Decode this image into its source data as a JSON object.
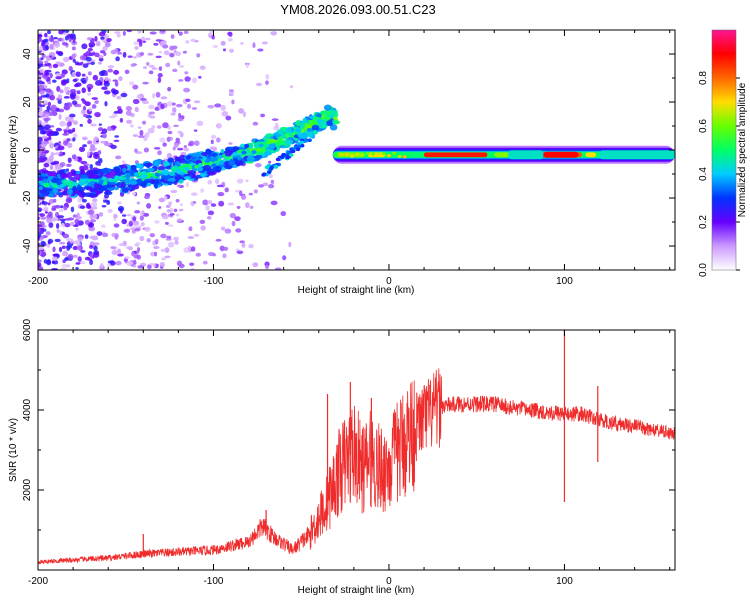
{
  "title": "YM08.2026.093.00.51.C23",
  "colors": {
    "snr_line": "#ef2b2b",
    "background": "#ffffff",
    "axis": "#000000"
  },
  "chart_data": [
    {
      "type": "heatmap",
      "name": "spectrogram",
      "xlabel": "Height of straight line (km)",
      "ylabel": "Frequency (Hz)",
      "xlim": [
        -200,
        163
      ],
      "ylim": [
        -50,
        50
      ],
      "xticks": [
        -200,
        -100,
        0,
        100
      ],
      "xtick_labels": [
        "-200",
        "-100",
        "0",
        "100"
      ],
      "yticks": [
        -40,
        -20,
        0,
        20,
        40
      ],
      "ytick_labels": [
        "-40",
        "-20",
        "0",
        "20",
        "40"
      ],
      "colorbar": {
        "label": "Normalized spectral amplitude",
        "range": [
          0,
          1
        ],
        "ticks": [
          0.0,
          0.2,
          0.4,
          0.6,
          0.8
        ],
        "tick_labels": [
          "0.0",
          "0.2",
          "0.4",
          "0.6",
          "0.8"
        ],
        "colormap": [
          "#ffffff",
          "#cc99ff",
          "#6600ff",
          "#0033ff",
          "#00ccff",
          "#00ff66",
          "#66ff00",
          "#ffdd00",
          "#ff6600",
          "#ff0000",
          "#ff1493"
        ]
      },
      "ridge_track": [
        {
          "height": -200,
          "freq": -14
        },
        {
          "height": -170,
          "freq": -14
        },
        {
          "height": -140,
          "freq": -11
        },
        {
          "height": -110,
          "freq": -7
        },
        {
          "height": -80,
          "freq": -1
        },
        {
          "height": -60,
          "freq": 5
        },
        {
          "height": -45,
          "freq": 10
        },
        {
          "height": -33,
          "freq": 15
        },
        {
          "height": -20,
          "freq": 0
        },
        {
          "height": 0,
          "freq": -2
        },
        {
          "height": 30,
          "freq": -2
        },
        {
          "height": 60,
          "freq": -2
        },
        {
          "height": 100,
          "freq": -2
        },
        {
          "height": 130,
          "freq": -2
        },
        {
          "height": 163,
          "freq": -2
        }
      ]
    },
    {
      "type": "line",
      "name": "snr",
      "xlabel": "Height of straight line (km)",
      "ylabel": "SNR (10 * v/v)",
      "xlim": [
        -200,
        163
      ],
      "ylim": [
        0,
        6000
      ],
      "xticks": [
        -200,
        -100,
        0,
        100
      ],
      "xtick_labels": [
        "-200",
        "-100",
        "0",
        "100"
      ],
      "yticks": [
        2000,
        4000,
        6000
      ],
      "ytick_labels": [
        "2000",
        "4000",
        "6000"
      ],
      "series": [
        {
          "name": "SNR",
          "x": [
            -200,
            -180,
            -160,
            -140,
            -120,
            -100,
            -80,
            -72,
            -65,
            -55,
            -45,
            -35,
            -28,
            -20,
            -15,
            -10,
            -5,
            0,
            10,
            20,
            30,
            40,
            50,
            60,
            70,
            80,
            90,
            100,
            110,
            120,
            130,
            140,
            150,
            163
          ],
          "y": [
            200,
            250,
            300,
            400,
            450,
            500,
            700,
            1100,
            800,
            500,
            900,
            1700,
            2500,
            3000,
            2500,
            2800,
            2500,
            2600,
            3300,
            3800,
            4100,
            4150,
            4150,
            4150,
            4050,
            4000,
            3950,
            3900,
            3900,
            3750,
            3650,
            3600,
            3500,
            3400
          ]
        }
      ],
      "spikes": [
        {
          "x": -140,
          "y": 900
        },
        {
          "x": -70,
          "y": 1500
        },
        {
          "x": -35,
          "y": 4400
        },
        {
          "x": -22,
          "y": 4700
        },
        {
          "x": -10,
          "y": 4300
        },
        {
          "x": 100,
          "y": 6000
        },
        {
          "x": 100,
          "y": 1700
        },
        {
          "x": 119,
          "y": 4600
        },
        {
          "x": 119,
          "y": 2700
        }
      ]
    }
  ]
}
